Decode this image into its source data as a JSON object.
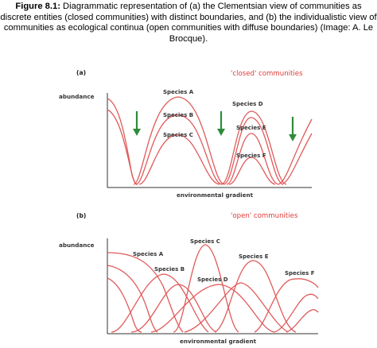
{
  "caption": {
    "figure_label": "Figure 8.1:",
    "text": " Diagrammatic representation of (a) the Clementsian view of communities as discrete entities (closed communities) with distinct boundaries, and (b) the individualistic view of communities as ecological continua (open communities with diffuse boundaries) (Image: A. Le Brocque)."
  },
  "panel_a": {
    "label": "(a)",
    "title": "'closed' communities",
    "y_label": "abundance",
    "x_label": "environmental gradient",
    "species": [
      "Species A",
      "Species B",
      "Species C",
      "Species D",
      "Species E",
      "Species F"
    ]
  },
  "panel_b": {
    "label": "(b)",
    "title": "'open' communities",
    "y_label": "abundance",
    "x_label": "environmental gradient",
    "species": [
      "Species A",
      "Species B",
      "Species C",
      "Species D",
      "Species E",
      "Species F"
    ]
  },
  "colors": {
    "curve": "#e05a5a",
    "arrow": "#2e8b3a",
    "axis": "#333333",
    "title": "#e03a3a"
  }
}
